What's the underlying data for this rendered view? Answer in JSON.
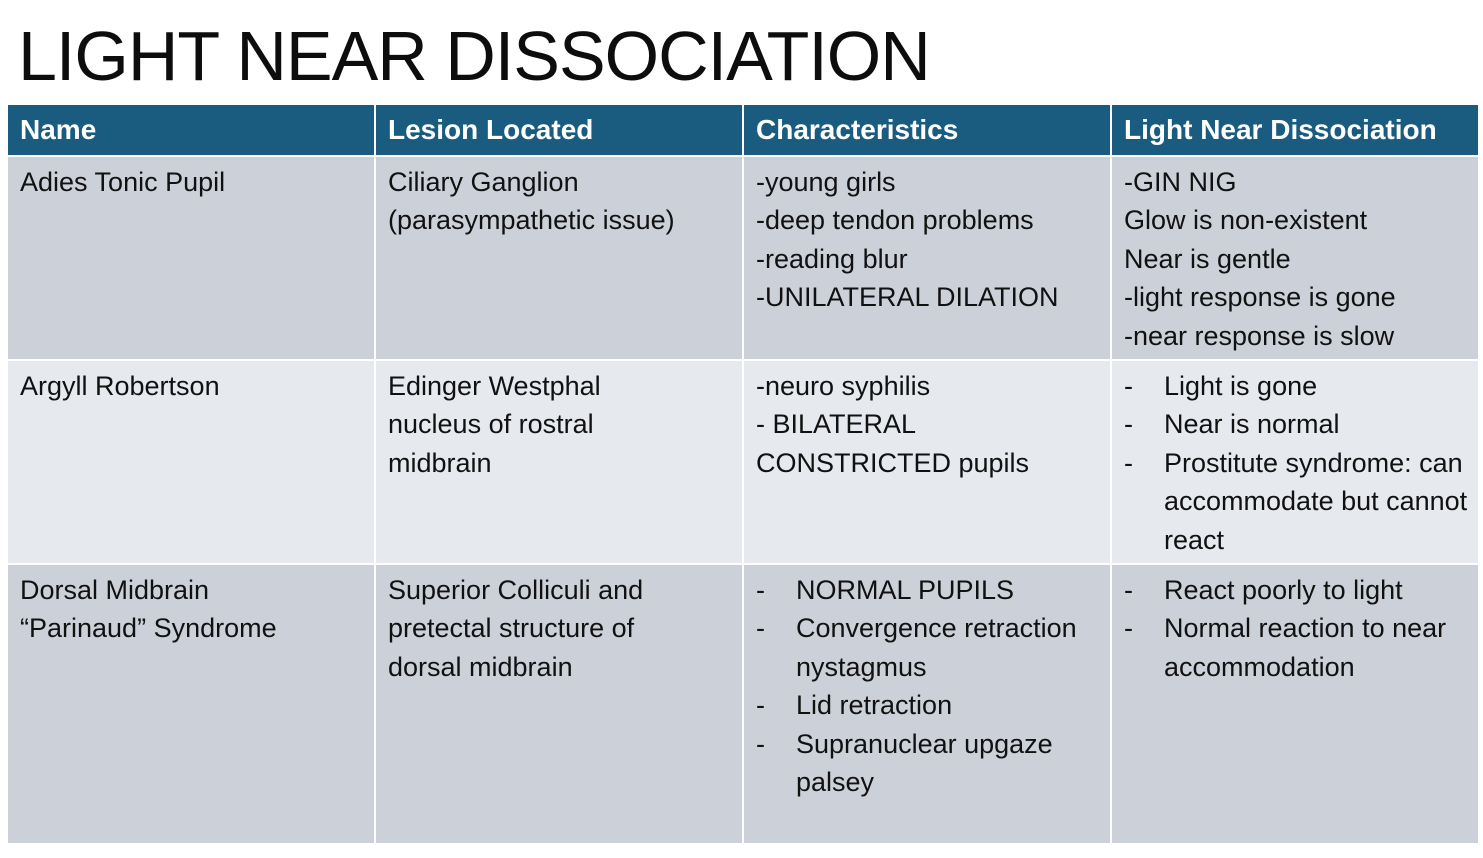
{
  "title": "LIGHT NEAR DISSOCIATION",
  "columns": [
    "Name",
    "Lesion Located",
    "Characteristics",
    "Light Near Dissociation"
  ],
  "rows": [
    {
      "name": [
        "Adies Tonic Pupil"
      ],
      "lesion": [
        "Ciliary Ganglion",
        "(parasympathetic issue)"
      ],
      "characteristics": [
        "-young girls",
        "-deep tendon problems",
        "-reading blur",
        "-UNILATERAL DILATION"
      ],
      "lnd": [
        "-GIN NIG",
        "Glow is non-existent",
        "Near is gentle",
        "-light response is gone",
        "-near response is slow"
      ]
    },
    {
      "name": [
        "Argyll Robertson"
      ],
      "lesion": [
        "Edinger Westphal",
        "nucleus of rostral",
        "midbrain"
      ],
      "characteristics": [
        "-neuro syphilis",
        "- BILATERAL",
        "CONSTRICTED pupils"
      ],
      "lnd_bullets": [
        "Light is gone",
        "Near is normal",
        "Prostitute syndrome: can accommodate but cannot react"
      ]
    },
    {
      "name": [
        "Dorsal Midbrain",
        "“Parinaud” Syndrome"
      ],
      "lesion": [
        "Superior Colliculi and",
        "pretectal structure of",
        "dorsal midbrain"
      ],
      "characteristics_bullets": [
        "NORMAL PUPILS",
        "Convergence retraction nystagmus",
        "Lid retraction",
        "Supranuclear upgaze palsey"
      ],
      "lnd_bullets": [
        "React poorly to light",
        "Normal reaction to near accommodation"
      ]
    }
  ],
  "bullet_mark": "-",
  "colors": {
    "header": "#1a5b80",
    "row_dark": "#ccd1d9",
    "row_light": "#e6e9ee"
  }
}
